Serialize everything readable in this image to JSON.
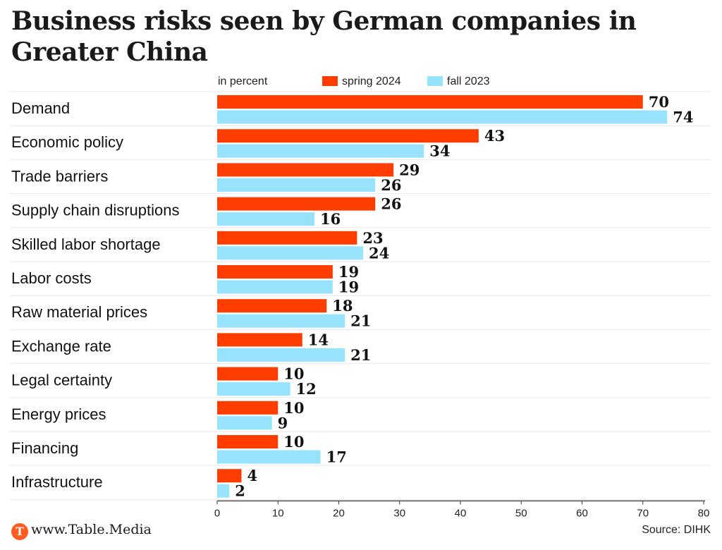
{
  "title": "Business risks seen by German companies in Greater China",
  "legend": {
    "unit": "in percent",
    "spring_label": "spring 2024",
    "fall_label": "fall 2023"
  },
  "colors": {
    "spring": "#ff3d00",
    "fall": "#96e3fb",
    "gridline": "#e6e6e6",
    "axis": "#333333"
  },
  "chart_data": {
    "type": "bar",
    "orientation": "horizontal",
    "categories": [
      "Demand",
      "Economic policy",
      "Trade barriers",
      "Supply chain disruptions",
      "Skilled labor shortage",
      "Labor costs",
      "Raw material prices",
      "Exchange rate",
      "Legal certainty",
      "Energy prices",
      "Financing",
      "Infrastructure"
    ],
    "series": [
      {
        "name": "spring 2024",
        "values": [
          70,
          43,
          29,
          26,
          23,
          19,
          18,
          14,
          10,
          10,
          10,
          4
        ]
      },
      {
        "name": "fall 2023",
        "values": [
          74,
          34,
          26,
          16,
          24,
          19,
          21,
          21,
          12,
          9,
          17,
          2
        ]
      }
    ],
    "xlim": [
      0,
      80
    ],
    "xticks": [
      0,
      10,
      20,
      30,
      40,
      50,
      60,
      70,
      80
    ],
    "xlabel": "in percent",
    "legend_position": "top"
  },
  "footer": {
    "logo_letter": "T",
    "site": "www.Table.Media",
    "source": "Source: DIHK"
  }
}
